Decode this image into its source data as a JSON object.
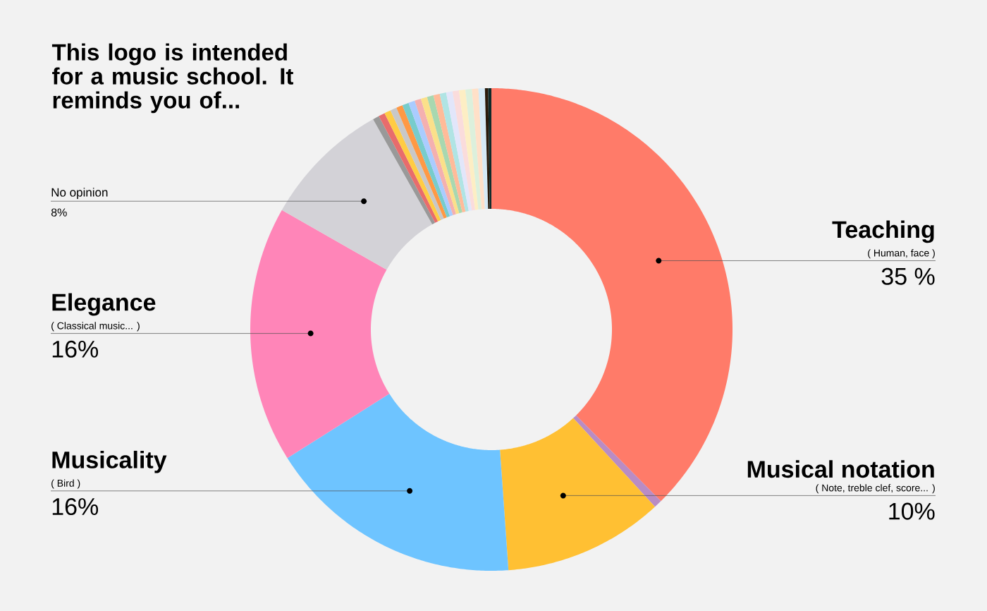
{
  "chart_data": {
    "type": "donut",
    "title": "This logo is intended for a music school. It reminds you of...",
    "categories": [
      "Teaching",
      null,
      "Musical notation",
      "Musicality",
      "Elegance",
      "No opinion",
      null,
      null,
      null,
      null,
      null,
      null,
      null,
      null,
      null,
      null,
      null,
      null,
      null,
      null,
      null,
      null,
      null,
      null,
      null,
      null
    ],
    "values": [
      35,
      0.5,
      10,
      16,
      16,
      8,
      0.4,
      0.4,
      0.4,
      0.4,
      0.4,
      0.4,
      0.4,
      0.4,
      0.4,
      0.4,
      0.4,
      0.4,
      0.4,
      0.4,
      0.4,
      0.4,
      0.4,
      0.4,
      0.2,
      0.2
    ],
    "colors": [
      "#ff7b69",
      "#b98cc4",
      "#ffc033",
      "#6ec4ff",
      "#ff85b8",
      "#d3d2d7",
      "#999999",
      "#e86c6c",
      "#ffcc44",
      "#c8c8c8",
      "#ff9944",
      "#77cccc",
      "#aaccff",
      "#f4b0b0",
      "#fbe08a",
      "#a8d8b0",
      "#ffbb99",
      "#b0e4e4",
      "#e2e6fa",
      "#fadcdc",
      "#fdeec4",
      "#dcf0dc",
      "#ffe0c8",
      "#d6eaf6",
      "#2a1a0a",
      "#0f2a2a"
    ],
    "value_labels": [
      "35 %",
      null,
      "10%",
      "16%",
      "16%",
      "8%",
      null,
      null,
      null,
      null,
      null,
      null,
      null,
      null,
      null,
      null,
      null,
      null,
      null,
      null,
      null,
      null,
      null,
      null,
      null,
      null
    ],
    "annotations": [
      "( Human, face )",
      "( Note, treble clef, score... )",
      "( Bird )",
      "( Classical music... )"
    ]
  }
}
